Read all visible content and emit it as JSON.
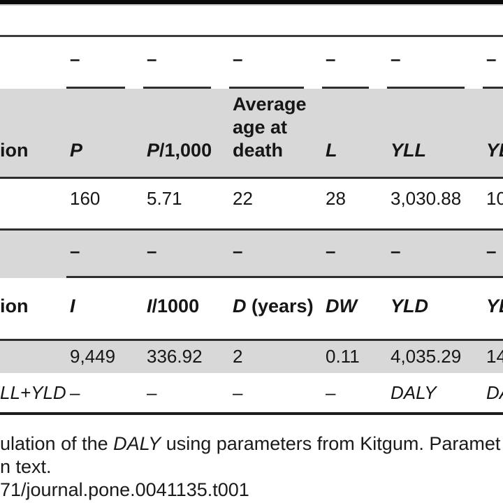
{
  "page": {
    "top_bar_color": "#0b0b0b",
    "band_color": "#d8d8d8"
  },
  "table": {
    "section_yll": {
      "formula_row": {
        "cells": [
          "",
          "–",
          "–",
          "–",
          "–",
          "–",
          "–"
        ]
      },
      "header_row": {
        "cells": [
          {
            "sym": "",
            "rest": "ion"
          },
          {
            "sym": "P",
            "rest": ""
          },
          {
            "sym": "P",
            "rest": "/1,000"
          },
          {
            "sym": "",
            "rest": "Average age at death"
          },
          {
            "sym": "L",
            "rest": ""
          },
          {
            "sym": "YLL",
            "rest": ""
          },
          {
            "sym": "YL",
            "rest": ""
          }
        ]
      },
      "data_row": {
        "cells": [
          "",
          "160",
          "5.71",
          "22",
          "28",
          "3,030.88",
          "10"
        ]
      }
    },
    "section_yld": {
      "formula_row": {
        "cells": [
          "",
          "–",
          "–",
          "–",
          "–",
          "–",
          "–"
        ]
      },
      "header_row": {
        "cells": [
          {
            "sym": "",
            "rest": "ion"
          },
          {
            "sym": "I",
            "rest": ""
          },
          {
            "sym": "I",
            "rest": "/1000"
          },
          {
            "sym": "D",
            "rest": " (years)"
          },
          {
            "sym": "DW",
            "rest": ""
          },
          {
            "sym": "YLD",
            "rest": ""
          },
          {
            "sym": "YL",
            "rest": ""
          }
        ]
      },
      "data_row": {
        "cells": [
          "",
          "9,449",
          "336.92",
          "2",
          "0.11",
          "4,035.29",
          "14"
        ]
      },
      "total_row": {
        "cells": [
          "LL+YLD",
          "–",
          "–",
          "–",
          "–",
          "DALY",
          "DA"
        ]
      }
    }
  },
  "caption": {
    "line1_pre": "ulation of the ",
    "line1_italic": "DALY",
    "line1_post": " using parameters from Kitgum. Paramet",
    "line2": "n text.",
    "line3": "71/journal.pone.0041135.t001"
  }
}
